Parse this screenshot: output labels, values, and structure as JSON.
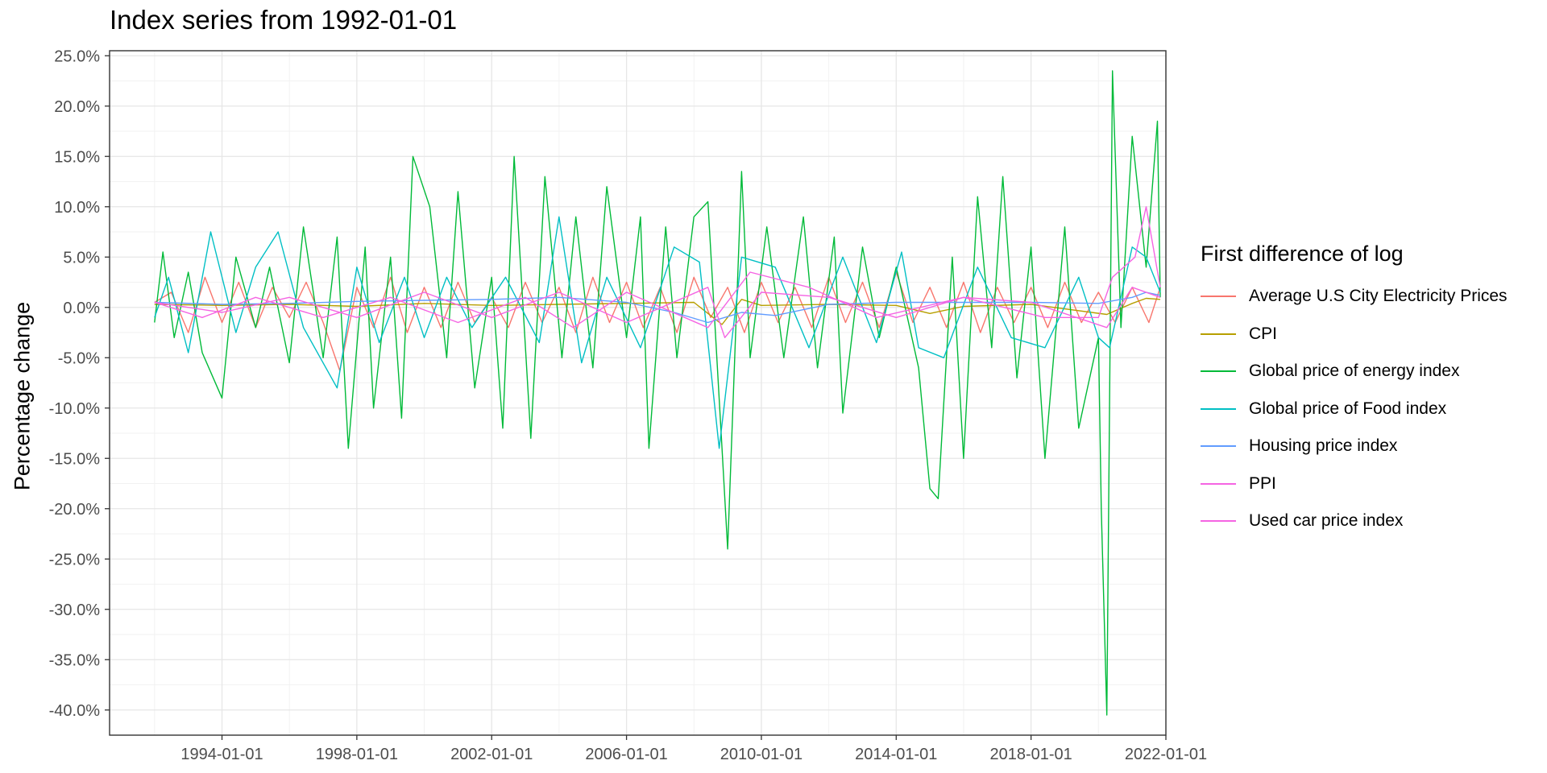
{
  "chart_data": {
    "type": "line",
    "title": "Index series from 1992-01-01",
    "xlabel": "",
    "ylabel": "Percentage change",
    "legend_title": "First difference of log",
    "legend_position": "right",
    "grid": true,
    "x_range": [
      "1990-09-01",
      "2022-01-01"
    ],
    "ylim": [
      -42.5,
      25.5
    ],
    "x_ticks": [
      "1994-01-01",
      "1998-01-01",
      "2002-01-01",
      "2006-01-01",
      "2010-01-01",
      "2014-01-01",
      "2018-01-01",
      "2022-01-01"
    ],
    "y_ticks": [
      25,
      20,
      15,
      10,
      5,
      0,
      -5,
      -10,
      -15,
      -20,
      -25,
      -30,
      -35,
      -40
    ],
    "y_tick_labels": [
      "25.0%",
      "20.0%",
      "15.0%",
      "10.0%",
      "5.0%",
      "0.0%",
      "-5.0%",
      "-10.0%",
      "-15.0%",
      "-20.0%",
      "-25.0%",
      "-30.0%",
      "-35.0%",
      "-40.0%"
    ],
    "series": [
      {
        "name": "Average U.S City Electricity Prices",
        "color": "#F8766D",
        "points": [
          [
            "1992-01-01",
            0.5
          ],
          [
            "1992-07-01",
            1.5
          ],
          [
            "1993-01-01",
            -2.5
          ],
          [
            "1993-07-01",
            3.0
          ],
          [
            "1994-01-01",
            -1.5
          ],
          [
            "1994-07-01",
            2.5
          ],
          [
            "1995-01-01",
            -2.0
          ],
          [
            "1995-07-01",
            2.0
          ],
          [
            "1996-01-01",
            -1.0
          ],
          [
            "1996-07-01",
            2.5
          ],
          [
            "1997-01-01",
            -1.5
          ],
          [
            "1997-07-01",
            -6.3
          ],
          [
            "1998-01-01",
            2.0
          ],
          [
            "1998-07-01",
            -2.0
          ],
          [
            "1999-01-01",
            3.0
          ],
          [
            "1999-07-01",
            -2.5
          ],
          [
            "2000-01-01",
            2.0
          ],
          [
            "2000-07-01",
            -2.0
          ],
          [
            "2001-01-01",
            2.5
          ],
          [
            "2001-07-01",
            -1.5
          ],
          [
            "2002-01-01",
            1.0
          ],
          [
            "2002-07-01",
            -2.0
          ],
          [
            "2003-01-01",
            2.5
          ],
          [
            "2003-07-01",
            -1.5
          ],
          [
            "2004-01-01",
            2.0
          ],
          [
            "2004-07-01",
            -2.5
          ],
          [
            "2005-01-01",
            3.0
          ],
          [
            "2005-07-01",
            -1.5
          ],
          [
            "2006-01-01",
            2.5
          ],
          [
            "2006-07-01",
            -2.0
          ],
          [
            "2007-01-01",
            2.0
          ],
          [
            "2007-07-01",
            -2.5
          ],
          [
            "2008-01-01",
            3.0
          ],
          [
            "2008-07-01",
            -1.0
          ],
          [
            "2009-01-01",
            2.0
          ],
          [
            "2009-07-01",
            -2.5
          ],
          [
            "2010-01-01",
            2.5
          ],
          [
            "2010-07-01",
            -1.5
          ],
          [
            "2011-01-01",
            2.0
          ],
          [
            "2011-07-01",
            -2.0
          ],
          [
            "2012-01-01",
            3.0
          ],
          [
            "2012-07-01",
            -1.5
          ],
          [
            "2013-01-01",
            2.5
          ],
          [
            "2013-07-01",
            -2.0
          ],
          [
            "2014-01-01",
            3.5
          ],
          [
            "2014-07-01",
            -1.5
          ],
          [
            "2015-01-01",
            2.0
          ],
          [
            "2015-07-01",
            -2.0
          ],
          [
            "2016-01-01",
            2.5
          ],
          [
            "2016-07-01",
            -2.5
          ],
          [
            "2017-01-01",
            2.0
          ],
          [
            "2017-07-01",
            -1.5
          ],
          [
            "2018-01-01",
            2.0
          ],
          [
            "2018-07-01",
            -2.0
          ],
          [
            "2019-01-01",
            2.5
          ],
          [
            "2019-07-01",
            -1.5
          ],
          [
            "2020-01-01",
            1.5
          ],
          [
            "2020-07-01",
            -1.5
          ],
          [
            "2021-01-01",
            2.0
          ],
          [
            "2021-07-01",
            -1.5
          ],
          [
            "2021-11-01",
            2.0
          ]
        ]
      },
      {
        "name": "CPI",
        "color": "#B79F00",
        "points": [
          [
            "1992-01-01",
            0.3
          ],
          [
            "1994-01-01",
            0.2
          ],
          [
            "1996-01-01",
            0.3
          ],
          [
            "1998-01-01",
            0.1
          ],
          [
            "2000-01-01",
            0.4
          ],
          [
            "2002-01-01",
            0.2
          ],
          [
            "2004-01-01",
            0.3
          ],
          [
            "2006-01-01",
            0.4
          ],
          [
            "2008-01-01",
            0.5
          ],
          [
            "2008-11-01",
            -1.7
          ],
          [
            "2009-06-01",
            0.8
          ],
          [
            "2010-01-01",
            0.2
          ],
          [
            "2012-01-01",
            0.3
          ],
          [
            "2014-01-01",
            0.2
          ],
          [
            "2015-01-01",
            -0.6
          ],
          [
            "2016-01-01",
            0.1
          ],
          [
            "2018-01-01",
            0.3
          ],
          [
            "2020-04-01",
            -0.7
          ],
          [
            "2021-01-01",
            0.4
          ],
          [
            "2021-06-01",
            0.9
          ],
          [
            "2021-11-01",
            0.8
          ]
        ]
      },
      {
        "name": "Global price of energy index",
        "color": "#00BA38",
        "points": [
          [
            "1992-01-01",
            -1.5
          ],
          [
            "1992-04-01",
            5.5
          ],
          [
            "1992-08-01",
            -3.0
          ],
          [
            "1993-01-01",
            3.5
          ],
          [
            "1993-06-01",
            -4.5
          ],
          [
            "1994-01-01",
            -9.0
          ],
          [
            "1994-06-01",
            5.0
          ],
          [
            "1995-01-01",
            -2.0
          ],
          [
            "1995-06-01",
            4.0
          ],
          [
            "1996-01-01",
            -5.5
          ],
          [
            "1996-06-01",
            8.0
          ],
          [
            "1997-01-01",
            -5.0
          ],
          [
            "1997-06-01",
            7.0
          ],
          [
            "1997-10-01",
            -14.0
          ],
          [
            "1998-04-01",
            6.0
          ],
          [
            "1998-07-01",
            -10.0
          ],
          [
            "1999-01-01",
            5.0
          ],
          [
            "1999-05-01",
            -11.0
          ],
          [
            "1999-09-01",
            15.0
          ],
          [
            "2000-03-01",
            10.0
          ],
          [
            "2000-09-01",
            -5.0
          ],
          [
            "2001-01-01",
            11.5
          ],
          [
            "2001-07-01",
            -8.0
          ],
          [
            "2002-01-01",
            3.0
          ],
          [
            "2002-05-01",
            -12.0
          ],
          [
            "2002-09-01",
            15.0
          ],
          [
            "2003-03-01",
            -13.0
          ],
          [
            "2003-08-01",
            13.0
          ],
          [
            "2004-02-01",
            -5.0
          ],
          [
            "2004-07-01",
            9.0
          ],
          [
            "2005-01-01",
            -6.0
          ],
          [
            "2005-06-01",
            12.0
          ],
          [
            "2006-01-01",
            -3.0
          ],
          [
            "2006-06-01",
            9.0
          ],
          [
            "2006-09-01",
            -14.0
          ],
          [
            "2007-03-01",
            8.0
          ],
          [
            "2007-07-01",
            -5.0
          ],
          [
            "2008-01-01",
            9.0
          ],
          [
            "2008-06-01",
            10.5
          ],
          [
            "2008-11-01",
            -14.0
          ],
          [
            "2009-01-01",
            -24.0
          ],
          [
            "2009-06-01",
            13.5
          ],
          [
            "2009-09-01",
            -5.0
          ],
          [
            "2010-03-01",
            8.0
          ],
          [
            "2010-09-01",
            -5.0
          ],
          [
            "2011-04-01",
            9.0
          ],
          [
            "2011-09-01",
            -6.0
          ],
          [
            "2012-03-01",
            7.0
          ],
          [
            "2012-06-01",
            -10.5
          ],
          [
            "2013-01-01",
            6.0
          ],
          [
            "2013-07-01",
            -3.0
          ],
          [
            "2014-01-01",
            4.0
          ],
          [
            "2014-09-01",
            -6.0
          ],
          [
            "2015-01-01",
            -18.0
          ],
          [
            "2015-04-01",
            -19.0
          ],
          [
            "2015-09-01",
            5.0
          ],
          [
            "2016-01-01",
            -15.0
          ],
          [
            "2016-06-01",
            11.0
          ],
          [
            "2016-11-01",
            -4.0
          ],
          [
            "2017-03-01",
            13.0
          ],
          [
            "2017-08-01",
            -7.0
          ],
          [
            "2018-01-01",
            6.0
          ],
          [
            "2018-06-01",
            -15.0
          ],
          [
            "2019-01-01",
            8.0
          ],
          [
            "2019-06-01",
            -12.0
          ],
          [
            "2020-01-01",
            -3.0
          ],
          [
            "2020-02-01",
            -20.0
          ],
          [
            "2020-04-01",
            -40.5
          ],
          [
            "2020-06-01",
            23.5
          ],
          [
            "2020-09-01",
            -2.0
          ],
          [
            "2021-01-01",
            17.0
          ],
          [
            "2021-06-01",
            4.0
          ],
          [
            "2021-10-01",
            18.5
          ],
          [
            "2021-11-01",
            1.0
          ]
        ]
      },
      {
        "name": "Global price of Food index",
        "color": "#00BFC4",
        "points": [
          [
            "1992-01-01",
            -1.0
          ],
          [
            "1992-06-01",
            3.0
          ],
          [
            "1993-01-01",
            -4.5
          ],
          [
            "1993-09-01",
            7.5
          ],
          [
            "1994-06-01",
            -2.5
          ],
          [
            "1995-01-01",
            4.0
          ],
          [
            "1995-09-01",
            7.5
          ],
          [
            "1996-06-01",
            -2.0
          ],
          [
            "1997-06-01",
            -8.0
          ],
          [
            "1998-01-01",
            4.0
          ],
          [
            "1998-09-01",
            -3.5
          ],
          [
            "1999-06-01",
            3.0
          ],
          [
            "2000-01-01",
            -3.0
          ],
          [
            "2000-09-01",
            3.0
          ],
          [
            "2001-06-01",
            -2.0
          ],
          [
            "2002-06-01",
            3.0
          ],
          [
            "2003-06-01",
            -3.5
          ],
          [
            "2004-01-01",
            9.0
          ],
          [
            "2004-09-01",
            -5.5
          ],
          [
            "2005-06-01",
            3.0
          ],
          [
            "2006-06-01",
            -4.0
          ],
          [
            "2007-06-01",
            6.0
          ],
          [
            "2008-03-01",
            4.5
          ],
          [
            "2008-10-01",
            -14.0
          ],
          [
            "2009-06-01",
            5.0
          ],
          [
            "2010-06-01",
            4.0
          ],
          [
            "2011-06-01",
            -4.0
          ],
          [
            "2012-06-01",
            5.0
          ],
          [
            "2013-06-01",
            -3.5
          ],
          [
            "2014-03-01",
            5.5
          ],
          [
            "2014-09-01",
            -4.0
          ],
          [
            "2015-06-01",
            -5.0
          ],
          [
            "2016-06-01",
            4.0
          ],
          [
            "2017-06-01",
            -3.0
          ],
          [
            "2018-06-01",
            -4.0
          ],
          [
            "2019-06-01",
            3.0
          ],
          [
            "2020-01-01",
            -3.0
          ],
          [
            "2020-05-01",
            -4.0
          ],
          [
            "2021-01-01",
            6.0
          ],
          [
            "2021-06-01",
            5.0
          ],
          [
            "2021-11-01",
            1.5
          ]
        ]
      },
      {
        "name": "Housing price index",
        "color": "#619CFF",
        "points": [
          [
            "1992-01-01",
            0.5
          ],
          [
            "1994-01-01",
            0.3
          ],
          [
            "1996-01-01",
            0.4
          ],
          [
            "1998-01-01",
            0.6
          ],
          [
            "2000-01-01",
            0.7
          ],
          [
            "2002-01-01",
            0.8
          ],
          [
            "2004-01-01",
            1.0
          ],
          [
            "2006-01-01",
            0.5
          ],
          [
            "2007-06-01",
            -0.5
          ],
          [
            "2008-06-01",
            -1.5
          ],
          [
            "2009-06-01",
            -0.5
          ],
          [
            "2010-06-01",
            -0.8
          ],
          [
            "2012-01-01",
            0.3
          ],
          [
            "2014-01-01",
            0.5
          ],
          [
            "2016-01-01",
            0.5
          ],
          [
            "2018-01-01",
            0.5
          ],
          [
            "2020-01-01",
            0.4
          ],
          [
            "2021-01-01",
            1.0
          ],
          [
            "2021-06-01",
            1.5
          ],
          [
            "2021-11-01",
            1.2
          ]
        ]
      },
      {
        "name": "PPI",
        "color": "#F564E3",
        "points": [
          [
            "1992-01-01",
            0.5
          ],
          [
            "1994-01-01",
            -0.5
          ],
          [
            "1996-01-01",
            1.0
          ],
          [
            "1998-01-01",
            -1.0
          ],
          [
            "2000-01-01",
            1.5
          ],
          [
            "2002-01-01",
            -1.0
          ],
          [
            "2004-01-01",
            1.5
          ],
          [
            "2006-01-01",
            -1.5
          ],
          [
            "2008-06-01",
            2.0
          ],
          [
            "2008-12-01",
            -3.0
          ],
          [
            "2010-01-01",
            1.5
          ],
          [
            "2012-01-01",
            1.0
          ],
          [
            "2014-01-01",
            -1.0
          ],
          [
            "2016-01-01",
            1.0
          ],
          [
            "2018-01-01",
            0.5
          ],
          [
            "2020-04-01",
            -2.0
          ],
          [
            "2021-01-01",
            2.0
          ],
          [
            "2021-11-01",
            1.0
          ]
        ]
      },
      {
        "name": "Used car price index",
        "color": "#F564E3",
        "points": [
          [
            "1992-01-01",
            0.5
          ],
          [
            "1993-06-01",
            -1.0
          ],
          [
            "1995-01-01",
            1.0
          ],
          [
            "1997-01-01",
            -1.0
          ],
          [
            "1999-01-01",
            1.0
          ],
          [
            "2001-01-01",
            -1.5
          ],
          [
            "2003-01-01",
            1.0
          ],
          [
            "2004-06-01",
            -2.0
          ],
          [
            "2006-01-01",
            1.5
          ],
          [
            "2008-06-01",
            -2.0
          ],
          [
            "2009-09-01",
            3.5
          ],
          [
            "2011-06-01",
            2.0
          ],
          [
            "2013-06-01",
            -1.0
          ],
          [
            "2016-01-01",
            1.0
          ],
          [
            "2018-06-01",
            -1.0
          ],
          [
            "2020-01-01",
            -1.0
          ],
          [
            "2020-06-01",
            3.0
          ],
          [
            "2021-02-01",
            5.0
          ],
          [
            "2021-06-01",
            10.0
          ],
          [
            "2021-11-01",
            2.0
          ]
        ]
      }
    ]
  }
}
